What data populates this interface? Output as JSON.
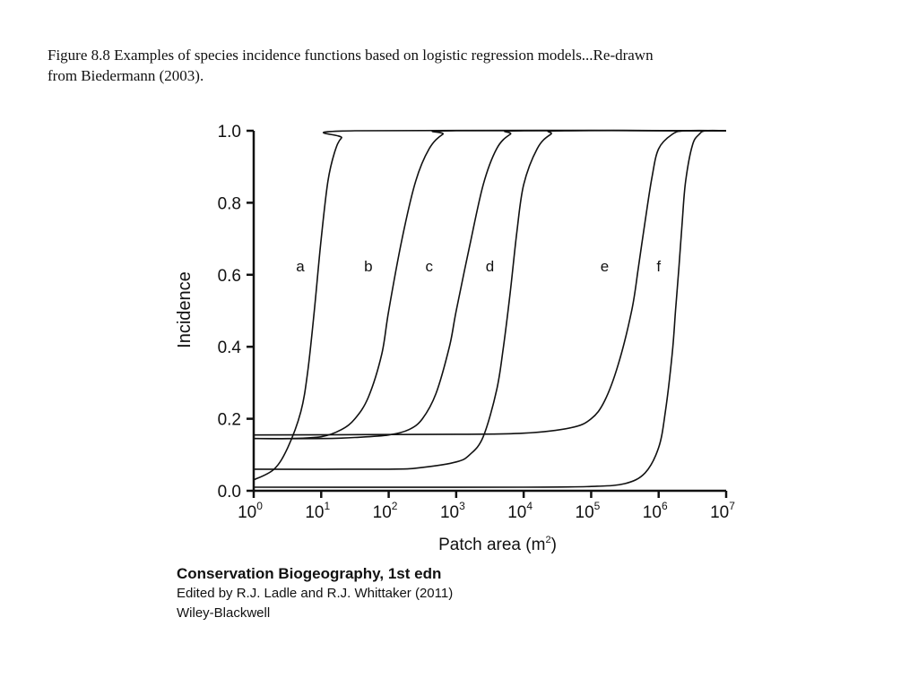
{
  "caption": {
    "line1": "Figure 8.8 Examples of species incidence functions based on logistic regression models...Re-drawn",
    "line2": "from Biedermann (2003)."
  },
  "credits": {
    "book": "Conservation Biogeography, 1st edn",
    "editors": "Edited by R.J. Ladle and R.J. Whittaker (2011)",
    "publisher": "Wiley-Blackwell"
  },
  "chart_data": {
    "type": "line",
    "title": "",
    "xlabel": "Patch area (m",
    "xlabel_superscript": "2",
    "xlabel_suffix": ")",
    "ylabel": "Incidence",
    "x_scale": "log10",
    "xlim": [
      1,
      10000000
    ],
    "ylim": [
      0,
      1.0
    ],
    "x_ticks": [
      {
        "base": "10",
        "exp": "0",
        "value": 1
      },
      {
        "base": "10",
        "exp": "1",
        "value": 10
      },
      {
        "base": "10",
        "exp": "2",
        "value": 100
      },
      {
        "base": "10",
        "exp": "3",
        "value": 1000
      },
      {
        "base": "10",
        "exp": "4",
        "value": 10000
      },
      {
        "base": "10",
        "exp": "5",
        "value": 100000
      },
      {
        "base": "10",
        "exp": "6",
        "value": 1000000
      },
      {
        "base": "10",
        "exp": "7",
        "value": 10000000
      }
    ],
    "y_ticks": [
      "0.0",
      "0.2",
      "0.4",
      "0.6",
      "0.8",
      "1.0"
    ],
    "grid": false,
    "line_color": "#111111",
    "series": [
      {
        "name": "a",
        "label_at": {
          "x": 4.9,
          "y": 0.61
        },
        "points": [
          [
            1,
            0.03
          ],
          [
            2,
            0.06
          ],
          [
            3.2,
            0.12
          ],
          [
            5,
            0.22
          ],
          [
            6.3,
            0.33
          ],
          [
            7.9,
            0.5
          ],
          [
            10,
            0.7
          ],
          [
            12.6,
            0.86
          ],
          [
            15.8,
            0.94
          ],
          [
            20,
            0.98
          ],
          [
            31.6,
            1.0
          ],
          [
            10000000,
            1.0
          ]
        ]
      },
      {
        "name": "b",
        "label_at": {
          "x": 50,
          "y": 0.61
        },
        "points": [
          [
            1,
            0.145
          ],
          [
            3.2,
            0.145
          ],
          [
            10,
            0.15
          ],
          [
            20,
            0.17
          ],
          [
            31.6,
            0.2
          ],
          [
            50,
            0.26
          ],
          [
            79,
            0.38
          ],
          [
            100,
            0.5
          ],
          [
            158,
            0.7
          ],
          [
            251,
            0.86
          ],
          [
            398,
            0.95
          ],
          [
            631,
            0.99
          ],
          [
            1000,
            1.0
          ],
          [
            10000000,
            1.0
          ]
        ]
      },
      {
        "name": "c",
        "label_at": {
          "x": 398,
          "y": 0.61
        },
        "points": [
          [
            1,
            0.145
          ],
          [
            10,
            0.145
          ],
          [
            31.6,
            0.148
          ],
          [
            100,
            0.155
          ],
          [
            200,
            0.17
          ],
          [
            316,
            0.2
          ],
          [
            501,
            0.27
          ],
          [
            794,
            0.4
          ],
          [
            1000,
            0.5
          ],
          [
            1585,
            0.68
          ],
          [
            2512,
            0.85
          ],
          [
            3981,
            0.95
          ],
          [
            6310,
            0.99
          ],
          [
            10000,
            1.0
          ],
          [
            10000000,
            1.0
          ]
        ]
      },
      {
        "name": "d",
        "label_at": {
          "x": 3162,
          "y": 0.61
        },
        "points": [
          [
            1,
            0.06
          ],
          [
            100,
            0.06
          ],
          [
            316,
            0.065
          ],
          [
            1000,
            0.08
          ],
          [
            1585,
            0.1
          ],
          [
            2512,
            0.15
          ],
          [
            3981,
            0.28
          ],
          [
            5012,
            0.4
          ],
          [
            6310,
            0.55
          ],
          [
            7943,
            0.72
          ],
          [
            10000,
            0.85
          ],
          [
            15849,
            0.95
          ],
          [
            25119,
            0.99
          ],
          [
            39811,
            1.0
          ],
          [
            10000000,
            1.0
          ]
        ]
      },
      {
        "name": "e",
        "label_at": {
          "x": 158489,
          "y": 0.61
        },
        "points": [
          [
            1,
            0.155
          ],
          [
            1000,
            0.157
          ],
          [
            10000,
            0.16
          ],
          [
            50119,
            0.175
          ],
          [
            100000,
            0.2
          ],
          [
            158489,
            0.25
          ],
          [
            251189,
            0.35
          ],
          [
            398107,
            0.5
          ],
          [
            501187,
            0.62
          ],
          [
            630957,
            0.75
          ],
          [
            794328,
            0.87
          ],
          [
            1000000,
            0.95
          ],
          [
            1584893,
            0.99
          ],
          [
            2511886,
            1.0
          ],
          [
            10000000,
            1.0
          ]
        ]
      },
      {
        "name": "f",
        "label_at": {
          "x": 1000000,
          "y": 0.61
        },
        "points": [
          [
            1,
            0.01
          ],
          [
            10000,
            0.01
          ],
          [
            100000,
            0.012
          ],
          [
            316228,
            0.02
          ],
          [
            630957,
            0.05
          ],
          [
            1000000,
            0.12
          ],
          [
            1258925,
            0.22
          ],
          [
            1584893,
            0.38
          ],
          [
            1778279,
            0.5
          ],
          [
            1995262,
            0.62
          ],
          [
            2238721,
            0.75
          ],
          [
            2511886,
            0.86
          ],
          [
            3162278,
            0.96
          ],
          [
            3981072,
            0.99
          ],
          [
            5011872,
            1.0
          ],
          [
            10000000,
            1.0
          ]
        ]
      }
    ]
  }
}
